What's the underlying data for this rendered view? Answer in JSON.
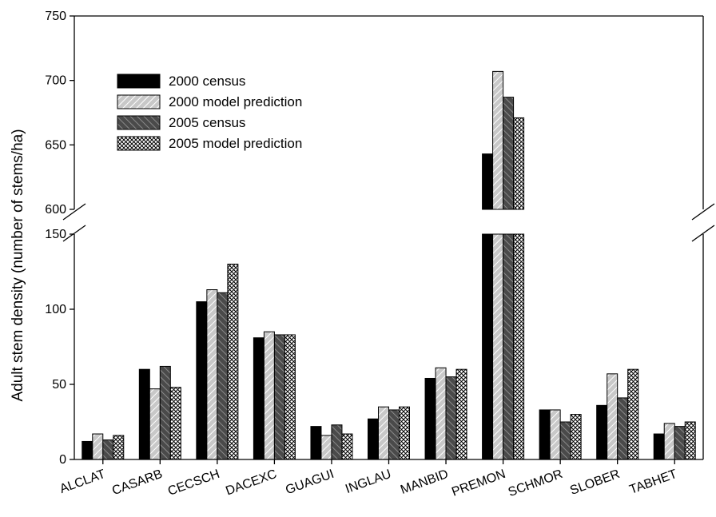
{
  "chart_data": {
    "type": "bar",
    "title": "",
    "xlabel": "",
    "ylabel": "Adult stem density (number of stems/ha)",
    "y_axis_break": true,
    "ylim_lower": [
      0,
      150
    ],
    "ylim_upper": [
      600,
      750
    ],
    "yticks_lower": [
      "0",
      "50",
      "100",
      "150"
    ],
    "yticks_upper": [
      "600",
      "650",
      "700",
      "750"
    ],
    "legend_position": "top-left",
    "categories": [
      "ALCLAT",
      "CASARB",
      "CECSCH",
      "DACEXC",
      "GUAGUI",
      "INGLAU",
      "MANBID",
      "PREMON",
      "SCHMOR",
      "SLOBER",
      "TABHET"
    ],
    "series": [
      {
        "name": "2000 census",
        "pattern": "solid-black",
        "color": "#000000",
        "values": [
          12,
          60,
          105,
          81,
          22,
          27,
          54,
          643,
          33,
          36,
          17
        ]
      },
      {
        "name": "2000 model prediction",
        "pattern": "light-diagonal-hatch",
        "color": "#bbbbbb",
        "values": [
          17,
          47,
          113,
          85,
          16,
          35,
          61,
          707,
          33,
          57,
          24
        ]
      },
      {
        "name": "2005 census",
        "pattern": "dark-diagonal-hatch",
        "color": "#555555",
        "values": [
          13,
          62,
          111,
          83,
          23,
          33,
          55,
          687,
          25,
          41,
          22
        ]
      },
      {
        "name": "2005 model prediction",
        "pattern": "crosshatch",
        "color": "#ffffff",
        "values": [
          16,
          48,
          130,
          83,
          17,
          35,
          60,
          671,
          30,
          60,
          25
        ]
      }
    ]
  }
}
